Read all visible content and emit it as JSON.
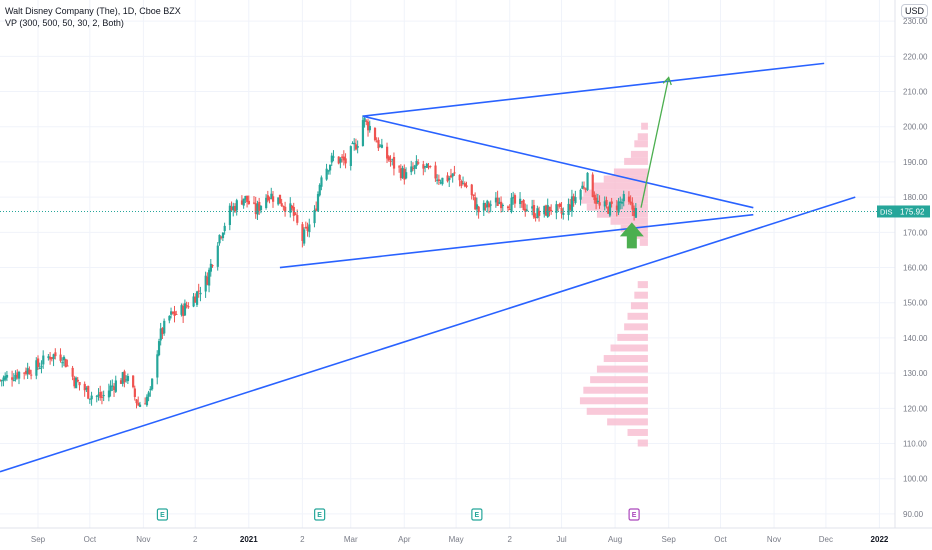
{
  "header": {
    "title": "Walt Disney Company (The), 1D, Cboe BZX",
    "indicator": "VP (300, 500, 50, 30, 2, Both)",
    "currency": "USD"
  },
  "price_label": {
    "ticker": "DIS",
    "value": "175.92"
  },
  "colors": {
    "up": "#26a69a",
    "down": "#ef5350",
    "trendline": "#2962ff",
    "arrow": "#4caf50",
    "profile": "#f8bbd0",
    "earnings": "#26a69a",
    "dividend": "#ab47bc"
  },
  "events": [
    {
      "label": "E",
      "date": "2020-11-12",
      "type": "earnings"
    },
    {
      "label": "E",
      "date": "2021-02-11",
      "type": "earnings"
    },
    {
      "label": "E",
      "date": "2021-05-13",
      "type": "earnings"
    },
    {
      "label": "E",
      "date": "2021-08-12",
      "type": "dividend"
    }
  ],
  "chart_data": {
    "type": "candlestick",
    "title": "Walt Disney Company (The), 1D, Cboe BZX",
    "ylim": [
      86,
      236
    ],
    "xlim": [
      "2020-08-10",
      "2022-01-10"
    ],
    "y_ticks": [
      "90.00",
      "100.00",
      "110.00",
      "120.00",
      "130.00",
      "140.00",
      "150.00",
      "160.00",
      "170.00",
      "180.00",
      "190.00",
      "200.00",
      "210.00",
      "220.00",
      "230.00"
    ],
    "x_ticks": [
      {
        "label": "Sep",
        "date": "2020-09-01"
      },
      {
        "label": "Oct",
        "date": "2020-10-01"
      },
      {
        "label": "Nov",
        "date": "2020-11-01"
      },
      {
        "label": "2",
        "date": "2020-12-01"
      },
      {
        "label": "2021",
        "date": "2021-01-01"
      },
      {
        "label": "2",
        "date": "2021-02-01"
      },
      {
        "label": "Mar",
        "date": "2021-03-01"
      },
      {
        "label": "Apr",
        "date": "2021-04-01"
      },
      {
        "label": "May",
        "date": "2021-05-01"
      },
      {
        "label": "2",
        "date": "2021-06-01"
      },
      {
        "label": "Jul",
        "date": "2021-07-01"
      },
      {
        "label": "Aug",
        "date": "2021-08-01"
      },
      {
        "label": "Sep",
        "date": "2021-09-01"
      },
      {
        "label": "Oct",
        "date": "2021-10-01"
      },
      {
        "label": "Nov",
        "date": "2021-11-01"
      },
      {
        "label": "Dec",
        "date": "2021-12-01"
      },
      {
        "label": "2022",
        "date": "2022-01-01"
      }
    ],
    "price_path": [
      [
        "2020-08-10",
        128
      ],
      [
        "2020-08-20",
        130
      ],
      [
        "2020-09-01",
        132
      ],
      [
        "2020-09-08",
        135
      ],
      [
        "2020-09-15",
        135
      ],
      [
        "2020-09-22",
        128
      ],
      [
        "2020-10-01",
        124
      ],
      [
        "2020-10-08",
        123
      ],
      [
        "2020-10-15",
        127
      ],
      [
        "2020-10-22",
        129
      ],
      [
        "2020-10-29",
        121
      ],
      [
        "2020-11-05",
        124
      ],
      [
        "2020-11-10",
        140
      ],
      [
        "2020-11-16",
        146
      ],
      [
        "2020-11-24",
        148
      ],
      [
        "2020-12-01",
        152
      ],
      [
        "2020-12-08",
        157
      ],
      [
        "2020-12-14",
        168
      ],
      [
        "2020-12-21",
        176
      ],
      [
        "2020-12-29",
        180
      ],
      [
        "2021-01-05",
        176
      ],
      [
        "2021-01-12",
        181
      ],
      [
        "2021-01-19",
        179
      ],
      [
        "2021-01-26",
        176
      ],
      [
        "2021-02-01",
        168
      ],
      [
        "2021-02-08",
        175
      ],
      [
        "2021-02-12",
        187
      ],
      [
        "2021-02-19",
        191
      ],
      [
        "2021-02-26",
        190
      ],
      [
        "2021-03-05",
        196
      ],
      [
        "2021-03-08",
        202
      ],
      [
        "2021-03-12",
        200
      ],
      [
        "2021-03-19",
        193
      ],
      [
        "2021-03-26",
        189
      ],
      [
        "2021-04-02",
        186
      ],
      [
        "2021-04-09",
        189
      ],
      [
        "2021-04-16",
        187
      ],
      [
        "2021-04-23",
        185
      ],
      [
        "2021-04-30",
        186
      ],
      [
        "2021-05-07",
        183
      ],
      [
        "2021-05-14",
        176
      ],
      [
        "2021-05-21",
        178
      ],
      [
        "2021-05-28",
        179
      ],
      [
        "2021-06-04",
        178
      ],
      [
        "2021-06-11",
        177
      ],
      [
        "2021-06-18",
        175
      ],
      [
        "2021-06-25",
        177
      ],
      [
        "2021-07-02",
        175
      ],
      [
        "2021-07-09",
        180
      ],
      [
        "2021-07-16",
        185
      ],
      [
        "2021-07-23",
        177
      ],
      [
        "2021-07-30",
        177
      ],
      [
        "2021-08-06",
        179
      ],
      [
        "2021-08-10",
        177
      ],
      [
        "2021-08-13",
        175.92
      ]
    ],
    "trendlines": [
      {
        "name": "upper-resistance",
        "points": [
          [
            "2021-03-08",
            203
          ],
          [
            "2021-10-20",
            177
          ]
        ]
      },
      {
        "name": "triangle-support",
        "points": [
          [
            "2021-01-19",
            160
          ],
          [
            "2021-10-20",
            175
          ]
        ]
      },
      {
        "name": "channel-top",
        "points": [
          [
            "2021-03-08",
            203
          ],
          [
            "2021-11-30",
            218
          ]
        ]
      },
      {
        "name": "long-support",
        "points": [
          [
            "2020-08-10",
            102
          ],
          [
            "2021-12-18",
            180
          ]
        ]
      }
    ],
    "projection": {
      "from": [
        "2021-08-16",
        177
      ],
      "to": [
        "2021-09-01",
        214
      ]
    },
    "signal": {
      "date": "2021-08-13",
      "price": 170,
      "direction": "up"
    },
    "volume_profile": [
      {
        "price": 200,
        "width": 0.1
      },
      {
        "price": 197,
        "width": 0.15
      },
      {
        "price": 195,
        "width": 0.2
      },
      {
        "price": 192,
        "width": 0.25
      },
      {
        "price": 190,
        "width": 0.35
      },
      {
        "price": 187,
        "width": 0.5
      },
      {
        "price": 185,
        "width": 0.65
      },
      {
        "price": 183,
        "width": 0.8
      },
      {
        "price": 181,
        "width": 0.95
      },
      {
        "price": 179,
        "width": 1.0
      },
      {
        "price": 177,
        "width": 0.9
      },
      {
        "price": 175,
        "width": 0.75
      },
      {
        "price": 173,
        "width": 0.55
      },
      {
        "price": 171,
        "width": 0.4
      },
      {
        "price": 169,
        "width": 0.25
      },
      {
        "price": 167,
        "width": 0.12
      },
      {
        "price": 155,
        "width": 0.15
      },
      {
        "price": 152,
        "width": 0.2
      },
      {
        "price": 149,
        "width": 0.25
      },
      {
        "price": 146,
        "width": 0.3
      },
      {
        "price": 143,
        "width": 0.35
      },
      {
        "price": 140,
        "width": 0.45
      },
      {
        "price": 137,
        "width": 0.55
      },
      {
        "price": 134,
        "width": 0.65
      },
      {
        "price": 131,
        "width": 0.75
      },
      {
        "price": 128,
        "width": 0.85
      },
      {
        "price": 125,
        "width": 0.95
      },
      {
        "price": 122,
        "width": 1.0
      },
      {
        "price": 119,
        "width": 0.9
      },
      {
        "price": 116,
        "width": 0.6
      },
      {
        "price": 113,
        "width": 0.3
      },
      {
        "price": 110,
        "width": 0.15
      }
    ]
  }
}
